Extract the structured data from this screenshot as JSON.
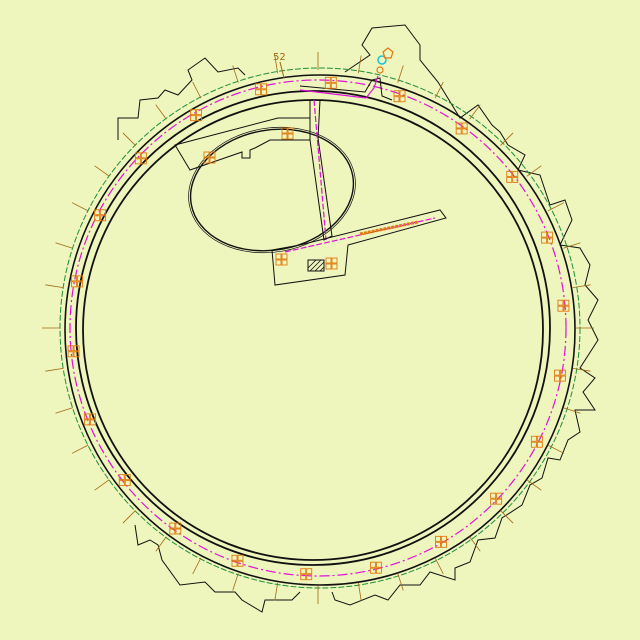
{
  "diagram": {
    "label_52": "52",
    "colors": {
      "background": "#eef5bd",
      "outline": "#111111",
      "magenta": "#e011d8",
      "green": "#1f8f3a",
      "orange": "#e07a10",
      "tick": "#a06a10",
      "cyan": "#19c4d6"
    }
  }
}
